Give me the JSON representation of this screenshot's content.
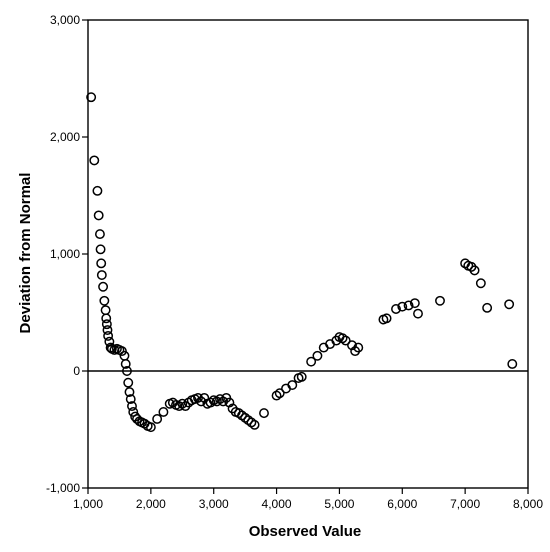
{
  "chart_data": {
    "type": "scatter",
    "title": "",
    "xlabel": "Observed Value",
    "ylabel": "Deviation from Normal",
    "xlim": [
      1000,
      8000
    ],
    "ylim": [
      -1000,
      3000
    ],
    "x_ticks": [
      "1,000",
      "2,000",
      "3,000",
      "4,000",
      "5,000",
      "6,000",
      "7,000",
      "8,000"
    ],
    "y_ticks": [
      "-1,000",
      "0",
      "1,000",
      "2,000",
      "3,000"
    ],
    "reference_line_y": 0,
    "marker": "open-circle",
    "grid": false,
    "series": [
      {
        "points": [
          [
            1050,
            2340
          ],
          [
            1100,
            1800
          ],
          [
            1150,
            1540
          ],
          [
            1170,
            1330
          ],
          [
            1190,
            1170
          ],
          [
            1200,
            1040
          ],
          [
            1210,
            920
          ],
          [
            1220,
            820
          ],
          [
            1240,
            720
          ],
          [
            1260,
            600
          ],
          [
            1280,
            520
          ],
          [
            1290,
            450
          ],
          [
            1300,
            400
          ],
          [
            1310,
            350
          ],
          [
            1320,
            300
          ],
          [
            1340,
            250
          ],
          [
            1360,
            200
          ],
          [
            1380,
            190
          ],
          [
            1420,
            180
          ],
          [
            1460,
            190
          ],
          [
            1500,
            180
          ],
          [
            1540,
            170
          ],
          [
            1580,
            130
          ],
          [
            1600,
            60
          ],
          [
            1620,
            0
          ],
          [
            1640,
            -100
          ],
          [
            1660,
            -180
          ],
          [
            1680,
            -240
          ],
          [
            1700,
            -300
          ],
          [
            1720,
            -350
          ],
          [
            1750,
            -390
          ],
          [
            1780,
            -410
          ],
          [
            1820,
            -430
          ],
          [
            1860,
            -440
          ],
          [
            1900,
            -450
          ],
          [
            1950,
            -470
          ],
          [
            2000,
            -480
          ],
          [
            2100,
            -410
          ],
          [
            2200,
            -350
          ],
          [
            2300,
            -280
          ],
          [
            2350,
            -270
          ],
          [
            2400,
            -290
          ],
          [
            2450,
            -300
          ],
          [
            2500,
            -280
          ],
          [
            2550,
            -300
          ],
          [
            2600,
            -270
          ],
          [
            2650,
            -250
          ],
          [
            2700,
            -240
          ],
          [
            2750,
            -230
          ],
          [
            2800,
            -260
          ],
          [
            2850,
            -230
          ],
          [
            2900,
            -280
          ],
          [
            2950,
            -270
          ],
          [
            3000,
            -250
          ],
          [
            3050,
            -260
          ],
          [
            3100,
            -240
          ],
          [
            3150,
            -260
          ],
          [
            3200,
            -230
          ],
          [
            3250,
            -270
          ],
          [
            3300,
            -320
          ],
          [
            3350,
            -350
          ],
          [
            3400,
            -360
          ],
          [
            3450,
            -380
          ],
          [
            3500,
            -400
          ],
          [
            3550,
            -420
          ],
          [
            3600,
            -440
          ],
          [
            3650,
            -460
          ],
          [
            3800,
            -360
          ],
          [
            4000,
            -210
          ],
          [
            4050,
            -190
          ],
          [
            4150,
            -150
          ],
          [
            4250,
            -120
          ],
          [
            4350,
            -60
          ],
          [
            4400,
            -50
          ],
          [
            4550,
            80
          ],
          [
            4650,
            130
          ],
          [
            4750,
            200
          ],
          [
            4850,
            230
          ],
          [
            4950,
            260
          ],
          [
            5000,
            290
          ],
          [
            5050,
            280
          ],
          [
            5100,
            260
          ],
          [
            5200,
            220
          ],
          [
            5250,
            170
          ],
          [
            5300,
            200
          ],
          [
            5700,
            440
          ],
          [
            5750,
            450
          ],
          [
            5900,
            530
          ],
          [
            6000,
            550
          ],
          [
            6100,
            560
          ],
          [
            6200,
            580
          ],
          [
            6250,
            490
          ],
          [
            6600,
            600
          ],
          [
            7000,
            920
          ],
          [
            7050,
            900
          ],
          [
            7100,
            890
          ],
          [
            7150,
            860
          ],
          [
            7250,
            750
          ],
          [
            7350,
            540
          ],
          [
            7700,
            570
          ],
          [
            7750,
            60
          ]
        ]
      }
    ]
  }
}
